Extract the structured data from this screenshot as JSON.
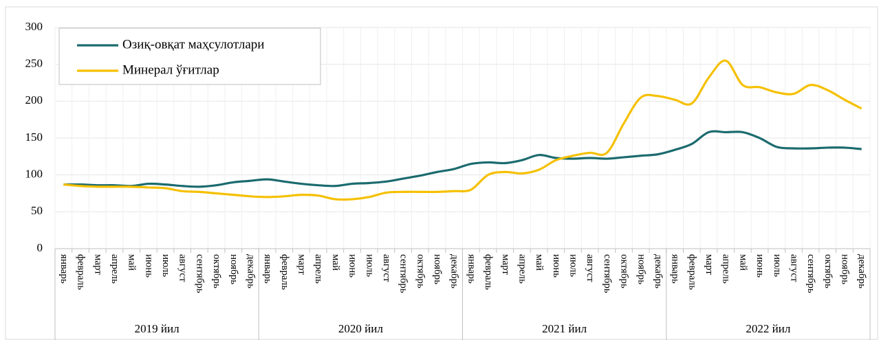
{
  "chart_data": {
    "type": "line",
    "categories": [
      "январь",
      "февраль",
      "март",
      "апрель",
      "май",
      "июнь",
      "июль",
      "август",
      "сентябрь",
      "октябрь",
      "ноябрь",
      "декабрь",
      "январь",
      "февраль",
      "март",
      "апрель",
      "май",
      "июнь",
      "июль",
      "август",
      "сентябрь",
      "октябрь",
      "ноябрь",
      "декабрь",
      "январь",
      "февраль",
      "март",
      "апрель",
      "май",
      "июнь",
      "июль",
      "август",
      "сентябрь",
      "октябрь",
      "ноябрь",
      "декабрь",
      "январь",
      "февраль",
      "март",
      "апрель",
      "май",
      "июнь",
      "июль",
      "август",
      "сентябрь",
      "октябрь",
      "ноябрь",
      "декабрь"
    ],
    "category_groups": [
      "2019 йил",
      "2020 йил",
      "2021 йил",
      "2022 йил"
    ],
    "series": [
      {
        "name": "Озиқ-овқат маҳсулотлари",
        "color": "#1b6b6e",
        "values": [
          87,
          87,
          86,
          86,
          85,
          88,
          87,
          85,
          84,
          86,
          90,
          92,
          94,
          91,
          88,
          86,
          85,
          88,
          89,
          91,
          95,
          99,
          104,
          108,
          115,
          117,
          116,
          120,
          127,
          123,
          122,
          123,
          122,
          124,
          126,
          128,
          134,
          142,
          158,
          158,
          158,
          150,
          138,
          136,
          136,
          137,
          137,
          135
        ]
      },
      {
        "name": "Минерал ўғитлар",
        "color": "#f5c000",
        "values": [
          87,
          85,
          84,
          84,
          84,
          83,
          82,
          78,
          77,
          75,
          73,
          71,
          70,
          71,
          73,
          72,
          67,
          67,
          70,
          76,
          77,
          77,
          77,
          78,
          80,
          100,
          104,
          102,
          107,
          120,
          126,
          130,
          130,
          170,
          205,
          207,
          202,
          197,
          232,
          255,
          222,
          219,
          212,
          210,
          222,
          215,
          202,
          190
        ]
      }
    ],
    "ylim": [
      0,
      300
    ],
    "yticks": [
      0,
      50,
      100,
      150,
      200,
      250,
      300
    ],
    "grid": true,
    "legend": "upper left"
  }
}
